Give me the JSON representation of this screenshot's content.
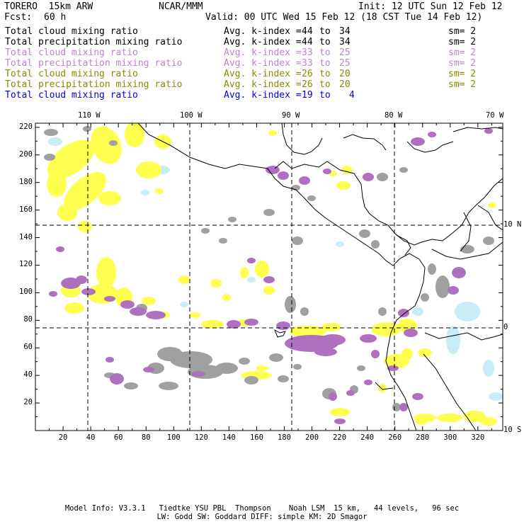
{
  "header": {
    "model": "TORERO  15km ARW",
    "org": "NCAR/MMM",
    "init": "Init: 12 UTC Sun 12 Feb 12",
    "fcst_label": "Fcst:",
    "fcst_value": "60 h",
    "valid": "Valid: 00 UTC Wed 15 Feb 12 (18 CST Tue 14 Feb 12)"
  },
  "legend": [
    {
      "field": "Total cloud mixing ratio",
      "kindex_label": "Avg. k-index =",
      "k_from": "44",
      "to": "to",
      "k_to": "34",
      "sm": "sm= 2",
      "color": "#000000"
    },
    {
      "field": "Total precipitation mixing ratio",
      "kindex_label": "Avg. k-index =",
      "k_from": "44",
      "to": "to",
      "k_to": "34",
      "sm": "sm= 2",
      "color": "#000000"
    },
    {
      "field": "Total cloud mixing ratio",
      "kindex_label": "Avg. k-index =",
      "k_from": "33",
      "to": "to",
      "k_to": "25",
      "sm": "sm= 2",
      "color": "#c080d0"
    },
    {
      "field": "Total precipitation mixing ratio",
      "kindex_label": "Avg. k-index =",
      "k_from": "33",
      "to": "to",
      "k_to": "25",
      "sm": "sm= 2",
      "color": "#c080d0"
    },
    {
      "field": "Total cloud mixing ratio",
      "kindex_label": "Avg. k-index =",
      "k_from": "26",
      "to": "to",
      "k_to": "20",
      "sm": "sm= 2",
      "color": "#8a8a00"
    },
    {
      "field": "Total precipitation mixing ratio",
      "kindex_label": "Avg. k-index =",
      "k_from": "26",
      "to": "to",
      "k_to": "20",
      "sm": "sm= 2",
      "color": "#8a8a00"
    },
    {
      "field": "Total cloud mixing ratio",
      "kindex_label": "Avg. k-index =",
      "k_from": "19",
      "to": "to",
      "k_to": "4",
      "sm": "",
      "color": "#0000e0"
    }
  ],
  "map": {
    "top_lon_labels": [
      "110 W",
      "100 W",
      "90 W",
      "80 W",
      "70 W"
    ],
    "right_lat_labels": [
      "10 N",
      "0",
      "10 S"
    ],
    "x_grid_labels": [
      "20",
      "40",
      "60",
      "80",
      "100",
      "120",
      "140",
      "160",
      "180",
      "200",
      "220",
      "240",
      "260",
      "280",
      "300",
      "320"
    ],
    "y_grid_labels": [
      "220",
      "200",
      "180",
      "160",
      "140",
      "120",
      "100",
      "80",
      "60",
      "40",
      "20"
    ],
    "colors": {
      "gray_cloud": "#a0a0a0",
      "purple_cloud": "#b070c0",
      "yellow_cloud": "#ffff50",
      "light_blue_cloud": "#c8ecf8",
      "coastline": "#000000"
    }
  },
  "footer": {
    "line1": "Model Info: V3.3.1   Tiedtke YSU PBL  Thompson    Noah LSM  15 km,   44 levels,   96 sec",
    "line2": "LW: Godd SW: Goddard DIFF: simple KM: 2D Smagor"
  }
}
